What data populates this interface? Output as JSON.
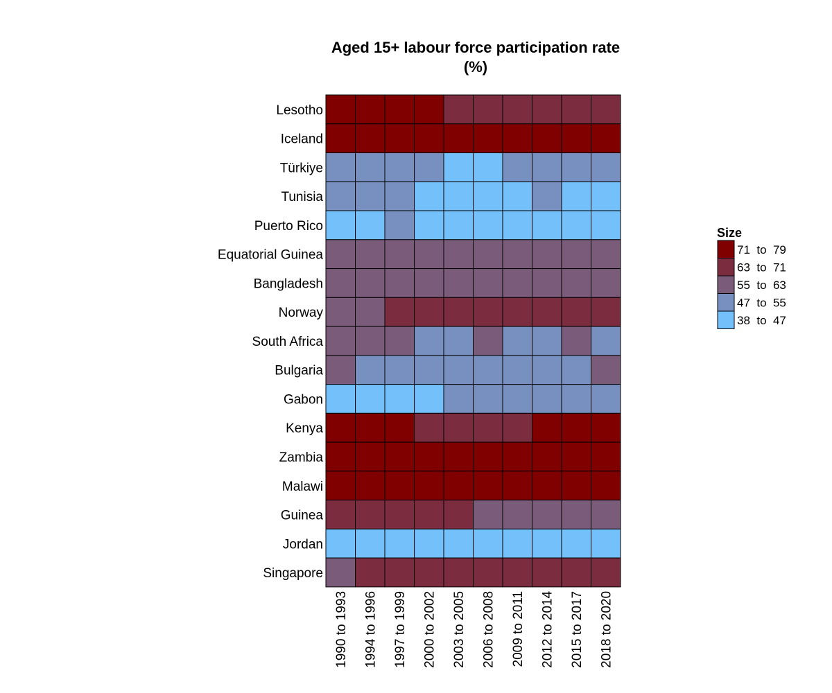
{
  "chart_data": {
    "type": "heatmap",
    "title_line1": "Aged 15+ labour force participation rate",
    "title_line2": "(%)",
    "x_categories": [
      "1990 to 1993",
      "1994 to 1996",
      "1997 to 1999",
      "2000 to 2002",
      "2003 to 2005",
      "2006 to 2008",
      "2009 to 2011",
      "2012 to 2014",
      "2015 to 2017",
      "2018 to 2020"
    ],
    "y_categories": [
      "Lesotho",
      "Iceland",
      "Türkiye",
      "Tunisia",
      "Puerto Rico",
      "Equatorial Guinea",
      "Bangladesh",
      "Norway",
      "South Africa",
      "Bulgaria",
      "Gabon",
      "Kenya",
      "Zambia",
      "Malawi",
      "Guinea",
      "Jordan",
      "Singapore"
    ],
    "legend": {
      "title": "Size",
      "bins": [
        {
          "label": "71  to  79",
          "color": "#800000"
        },
        {
          "label": "63  to  71",
          "color": "#7b2c3e"
        },
        {
          "label": "55  to  63",
          "color": "#7a5c7a"
        },
        {
          "label": "47  to  55",
          "color": "#7890c0"
        },
        {
          "label": "38  to  47",
          "color": "#74c0fb"
        }
      ]
    },
    "bin_index_matrix": [
      [
        0,
        0,
        0,
        0,
        1,
        1,
        1,
        1,
        1,
        1
      ],
      [
        0,
        0,
        0,
        0,
        0,
        0,
        0,
        0,
        0,
        0
      ],
      [
        3,
        3,
        3,
        3,
        4,
        4,
        3,
        3,
        3,
        3
      ],
      [
        3,
        3,
        3,
        4,
        4,
        4,
        4,
        3,
        4,
        4
      ],
      [
        4,
        4,
        3,
        4,
        4,
        4,
        4,
        4,
        4,
        4
      ],
      [
        2,
        2,
        2,
        2,
        2,
        2,
        2,
        2,
        2,
        2
      ],
      [
        2,
        2,
        2,
        2,
        2,
        2,
        2,
        2,
        2,
        2
      ],
      [
        2,
        2,
        1,
        1,
        1,
        1,
        1,
        1,
        1,
        1
      ],
      [
        2,
        2,
        2,
        3,
        3,
        2,
        3,
        3,
        2,
        3
      ],
      [
        2,
        3,
        3,
        3,
        3,
        3,
        3,
        3,
        3,
        2
      ],
      [
        4,
        4,
        4,
        4,
        3,
        3,
        3,
        3,
        3,
        3
      ],
      [
        0,
        0,
        0,
        1,
        1,
        1,
        1,
        0,
        0,
        0
      ],
      [
        0,
        0,
        0,
        0,
        0,
        0,
        0,
        0,
        0,
        0
      ],
      [
        0,
        0,
        0,
        0,
        0,
        0,
        0,
        0,
        0,
        0
      ],
      [
        1,
        1,
        1,
        1,
        1,
        2,
        2,
        2,
        2,
        2
      ],
      [
        4,
        4,
        4,
        4,
        4,
        4,
        4,
        4,
        4,
        4
      ],
      [
        2,
        1,
        1,
        1,
        1,
        1,
        1,
        1,
        1,
        1
      ]
    ]
  }
}
